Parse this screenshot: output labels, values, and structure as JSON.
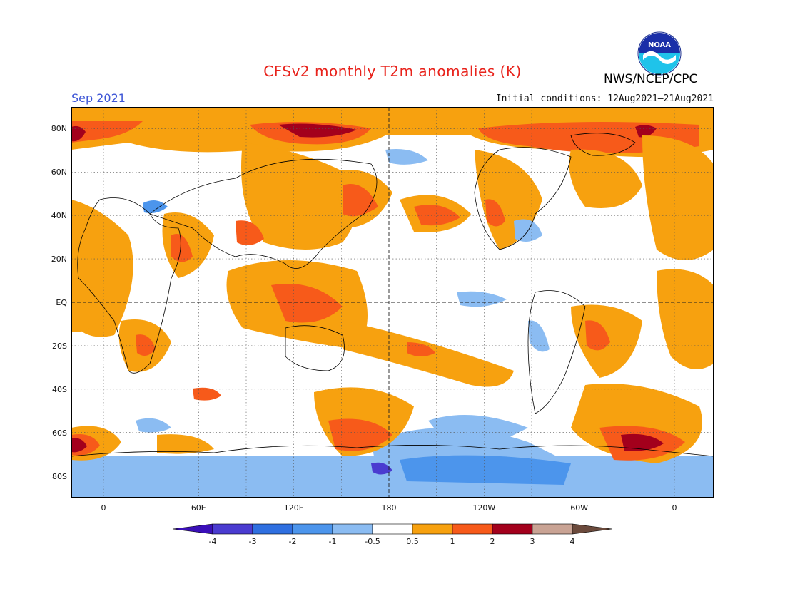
{
  "header": {
    "title": "CFSv2 monthly T2m anomalies (K)",
    "month": "Sep 2021",
    "initial_conditions": "Initial conditions: 12Aug2021–21Aug2021",
    "agency": "NWS/NCEP/CPC",
    "logo_text": "NOAA"
  },
  "map": {
    "lat_labels": [
      "80N",
      "60N",
      "40N",
      "20N",
      "EQ",
      "20S",
      "40S",
      "60S",
      "80S"
    ],
    "lon_labels": [
      "0",
      "60E",
      "120E",
      "180",
      "120W",
      "60W",
      "0"
    ]
  },
  "colorbar": {
    "labels": [
      "-4",
      "-3",
      "-2",
      "-1",
      "-0.5",
      "0.5",
      "1",
      "2",
      "3",
      "4"
    ],
    "colors": [
      "#3a0fb8",
      "#4a3bd0",
      "#2f6fe0",
      "#4c95ec",
      "#8bbcf2",
      "#ffffff",
      "#f7a10f",
      "#f75a1a",
      "#a3001c",
      "#c9a394",
      "#6b4a3c"
    ]
  }
}
